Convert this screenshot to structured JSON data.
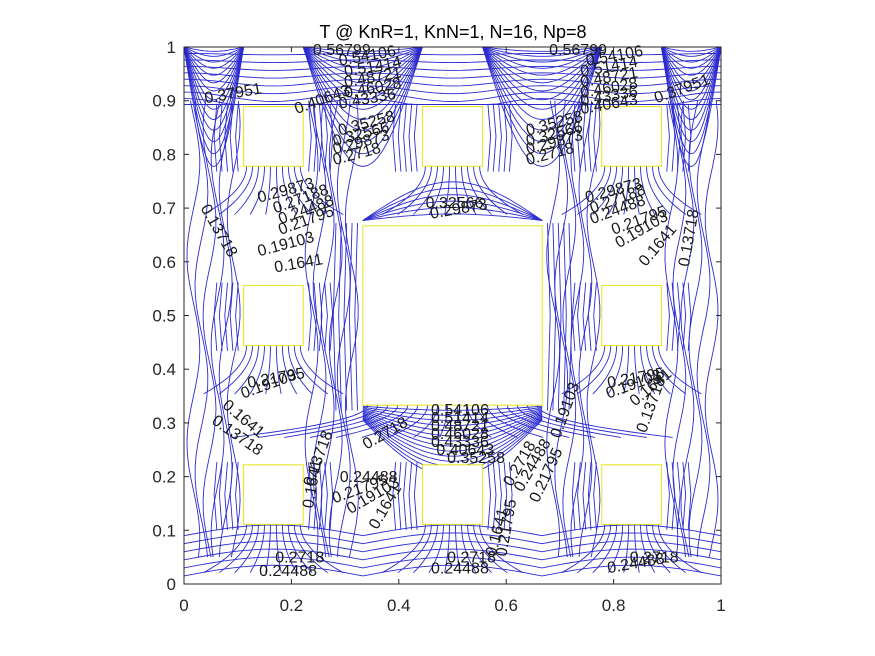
{
  "chart_data": {
    "type": "contour",
    "title": "T @ KnR=1, KnN=1, N=16, Np=8",
    "xlabel": "",
    "ylabel": "",
    "xlim": [
      0,
      1
    ],
    "ylim": [
      0,
      1
    ],
    "x_ticks": [
      "0",
      "0.2",
      "0.4",
      "0.6",
      "0.8",
      "1"
    ],
    "y_ticks": [
      "0",
      "0.1",
      "0.2",
      "0.3",
      "0.4",
      "0.5",
      "0.6",
      "0.7",
      "0.8",
      "0.9",
      "1"
    ],
    "grid": false,
    "colors": {
      "contour": "#2b2bd0",
      "obstacle_edge": "#e6e619",
      "axes": "#262626"
    },
    "obstacles": [
      {
        "x0": 0.333,
        "y0": 0.333,
        "x1": 0.667,
        "y1": 0.667
      },
      {
        "x0": 0.111,
        "y0": 0.111,
        "x1": 0.222,
        "y1": 0.222
      },
      {
        "x0": 0.444,
        "y0": 0.111,
        "x1": 0.556,
        "y1": 0.222
      },
      {
        "x0": 0.778,
        "y0": 0.111,
        "x1": 0.889,
        "y1": 0.222
      },
      {
        "x0": 0.111,
        "y0": 0.444,
        "x1": 0.222,
        "y1": 0.556
      },
      {
        "x0": 0.778,
        "y0": 0.444,
        "x1": 0.889,
        "y1": 0.556
      },
      {
        "x0": 0.111,
        "y0": 0.778,
        "x1": 0.222,
        "y1": 0.889
      },
      {
        "x0": 0.444,
        "y0": 0.778,
        "x1": 0.556,
        "y1": 0.889
      },
      {
        "x0": 0.778,
        "y0": 0.778,
        "x1": 0.889,
        "y1": 0.889
      }
    ],
    "contour_labels": [
      {
        "text": "0.56799",
        "x": 0.24,
        "y": 0.985,
        "rot": 0
      },
      {
        "text": "0.54106",
        "x": 0.29,
        "y": 0.965,
        "rot": -10
      },
      {
        "text": "0.51414",
        "x": 0.3,
        "y": 0.945,
        "rot": -10
      },
      {
        "text": "0.48721",
        "x": 0.3,
        "y": 0.925,
        "rot": -10
      },
      {
        "text": "0.46028",
        "x": 0.3,
        "y": 0.905,
        "rot": -10
      },
      {
        "text": "0.43336",
        "x": 0.29,
        "y": 0.885,
        "rot": -10
      },
      {
        "text": "0.40643",
        "x": 0.21,
        "y": 0.875,
        "rot": -20
      },
      {
        "text": "0.37951",
        "x": 0.04,
        "y": 0.895,
        "rot": -10
      },
      {
        "text": "0.35258",
        "x": 0.29,
        "y": 0.835,
        "rot": -15
      },
      {
        "text": "0.32566",
        "x": 0.28,
        "y": 0.815,
        "rot": -15
      },
      {
        "text": "0.29873",
        "x": 0.28,
        "y": 0.8,
        "rot": -15
      },
      {
        "text": "0.2718",
        "x": 0.28,
        "y": 0.78,
        "rot": -15
      },
      {
        "text": "0.56799",
        "x": 0.68,
        "y": 0.985,
        "rot": 0
      },
      {
        "text": "0.54106",
        "x": 0.75,
        "y": 0.965,
        "rot": -10
      },
      {
        "text": "0.51414",
        "x": 0.74,
        "y": 0.945,
        "rot": -10
      },
      {
        "text": "0.48721",
        "x": 0.74,
        "y": 0.925,
        "rot": -10
      },
      {
        "text": "0.46028",
        "x": 0.74,
        "y": 0.905,
        "rot": -10
      },
      {
        "text": "0.43336",
        "x": 0.74,
        "y": 0.89,
        "rot": -10
      },
      {
        "text": "0.40643",
        "x": 0.74,
        "y": 0.875,
        "rot": -10
      },
      {
        "text": "0.37951",
        "x": 0.88,
        "y": 0.895,
        "rot": -20
      },
      {
        "text": "0.35258",
        "x": 0.64,
        "y": 0.835,
        "rot": -15
      },
      {
        "text": "0.32566",
        "x": 0.64,
        "y": 0.815,
        "rot": -15
      },
      {
        "text": "0.29873",
        "x": 0.64,
        "y": 0.8,
        "rot": -15
      },
      {
        "text": "0.2718",
        "x": 0.64,
        "y": 0.78,
        "rot": -15
      },
      {
        "text": "0.29873",
        "x": 0.14,
        "y": 0.71,
        "rot": -15
      },
      {
        "text": "0.27188",
        "x": 0.17,
        "y": 0.69,
        "rot": -20
      },
      {
        "text": "0.24488",
        "x": 0.18,
        "y": 0.67,
        "rot": -20
      },
      {
        "text": "0.21795",
        "x": 0.18,
        "y": 0.65,
        "rot": -20
      },
      {
        "text": "0.19103",
        "x": 0.14,
        "y": 0.61,
        "rot": -15
      },
      {
        "text": "0.1641",
        "x": 0.17,
        "y": 0.58,
        "rot": -10
      },
      {
        "text": "0.13718",
        "x": 0.03,
        "y": 0.7,
        "rot": 60
      },
      {
        "text": "0.32566",
        "x": 0.45,
        "y": 0.7,
        "rot": 0
      },
      {
        "text": "0.29873",
        "x": 0.46,
        "y": 0.68,
        "rot": -10
      },
      {
        "text": "0.29873",
        "x": 0.75,
        "y": 0.71,
        "rot": -15
      },
      {
        "text": "0.27188",
        "x": 0.76,
        "y": 0.69,
        "rot": -20
      },
      {
        "text": "0.24488",
        "x": 0.76,
        "y": 0.67,
        "rot": -20
      },
      {
        "text": "0.21795",
        "x": 0.8,
        "y": 0.65,
        "rot": -20
      },
      {
        "text": "0.19103",
        "x": 0.81,
        "y": 0.625,
        "rot": -30
      },
      {
        "text": "0.1641",
        "x": 0.86,
        "y": 0.59,
        "rot": -50
      },
      {
        "text": "0.13718",
        "x": 0.94,
        "y": 0.59,
        "rot": -80
      },
      {
        "text": "0.21795",
        "x": 0.12,
        "y": 0.365,
        "rot": -10
      },
      {
        "text": "0.19103",
        "x": 0.11,
        "y": 0.345,
        "rot": -20
      },
      {
        "text": "0.1641",
        "x": 0.07,
        "y": 0.33,
        "rot": 40
      },
      {
        "text": "0.13718",
        "x": 0.05,
        "y": 0.3,
        "rot": 35
      },
      {
        "text": "0.21795",
        "x": 0.79,
        "y": 0.365,
        "rot": -10
      },
      {
        "text": "0.19103",
        "x": 0.79,
        "y": 0.345,
        "rot": -20
      },
      {
        "text": "0.1641",
        "x": 0.84,
        "y": 0.33,
        "rot": -40
      },
      {
        "text": "0.13718",
        "x": 0.86,
        "y": 0.28,
        "rot": -70
      },
      {
        "text": "0.54106",
        "x": 0.46,
        "y": 0.315,
        "rot": 0
      },
      {
        "text": "0.51414",
        "x": 0.46,
        "y": 0.3,
        "rot": 0
      },
      {
        "text": "0.48721",
        "x": 0.46,
        "y": 0.285,
        "rot": 0
      },
      {
        "text": "0.46028",
        "x": 0.46,
        "y": 0.27,
        "rot": 0
      },
      {
        "text": "0.43336",
        "x": 0.46,
        "y": 0.255,
        "rot": 0
      },
      {
        "text": "0.40643",
        "x": 0.47,
        "y": 0.24,
        "rot": 0
      },
      {
        "text": "0.35258",
        "x": 0.49,
        "y": 0.225,
        "rot": 0
      },
      {
        "text": "0.2718",
        "x": 0.34,
        "y": 0.25,
        "rot": -30
      },
      {
        "text": "0.24488",
        "x": 0.29,
        "y": 0.19,
        "rot": 0
      },
      {
        "text": "0.21795",
        "x": 0.28,
        "y": 0.15,
        "rot": -20
      },
      {
        "text": "0.19103",
        "x": 0.31,
        "y": 0.13,
        "rot": -30
      },
      {
        "text": "0.1641",
        "x": 0.36,
        "y": 0.1,
        "rot": -60
      },
      {
        "text": "0.13718",
        "x": 0.24,
        "y": 0.18,
        "rot": -70
      },
      {
        "text": "0.1641",
        "x": 0.24,
        "y": 0.14,
        "rot": -80
      },
      {
        "text": "0.2718",
        "x": 0.61,
        "y": 0.18,
        "rot": -60
      },
      {
        "text": "0.24488",
        "x": 0.63,
        "y": 0.17,
        "rot": -60
      },
      {
        "text": "0.21795",
        "x": 0.66,
        "y": 0.15,
        "rot": -65
      },
      {
        "text": "0.19103",
        "x": 0.7,
        "y": 0.27,
        "rot": -70
      },
      {
        "text": "0.1641",
        "x": 0.58,
        "y": 0.05,
        "rot": -75
      },
      {
        "text": "0.21795",
        "x": 0.6,
        "y": 0.05,
        "rot": -80
      },
      {
        "text": "0.2718",
        "x": 0.17,
        "y": 0.04,
        "rot": 0
      },
      {
        "text": "0.24488",
        "x": 0.14,
        "y": 0.015,
        "rot": 0
      },
      {
        "text": "0.2718",
        "x": 0.49,
        "y": 0.04,
        "rot": 0
      },
      {
        "text": "0.24488",
        "x": 0.46,
        "y": 0.02,
        "rot": 0
      },
      {
        "text": "0.2718",
        "x": 0.83,
        "y": 0.04,
        "rot": 0
      },
      {
        "text": "0.24488",
        "x": 0.79,
        "y": 0.02,
        "rot": -10
      }
    ]
  }
}
